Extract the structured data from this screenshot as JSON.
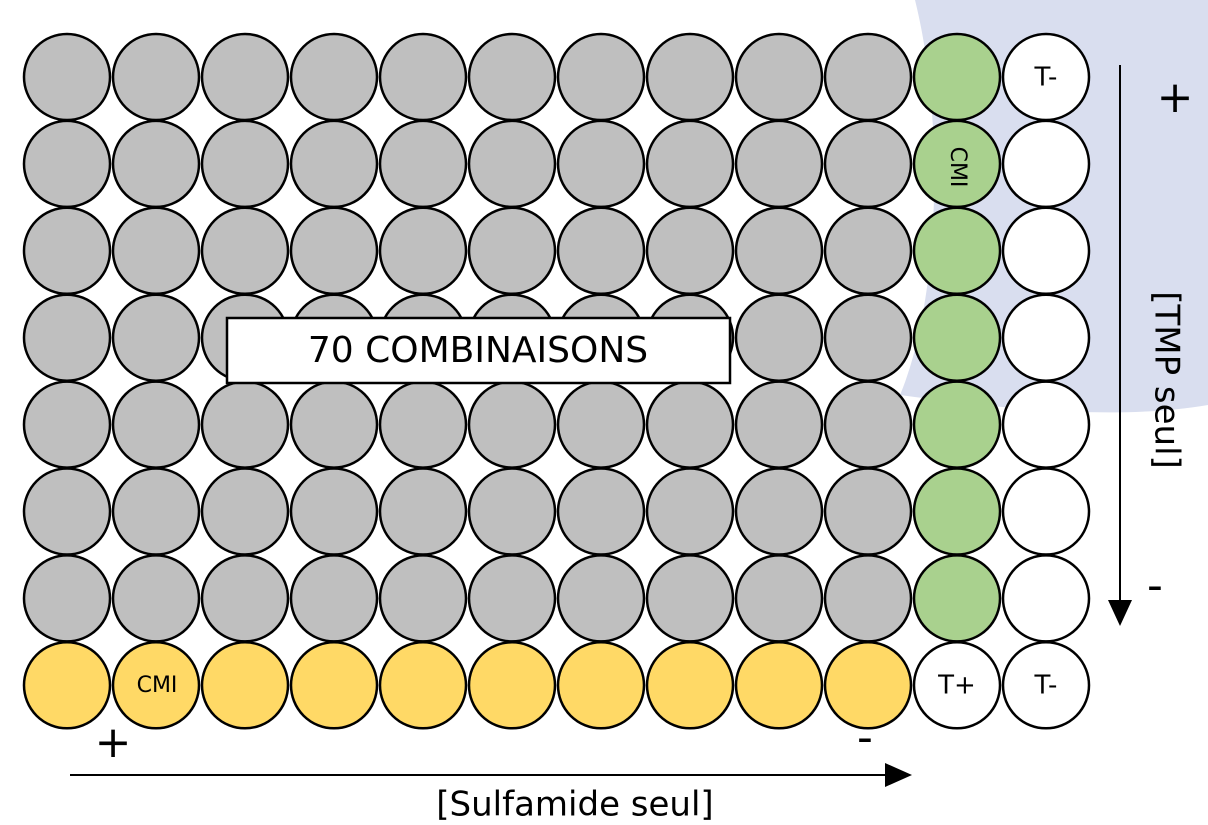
{
  "wells": {
    "top_right": "T-",
    "green_cmi": "CMI",
    "bottom_cmi": "CMI",
    "bottom_t_plus": "T+",
    "bottom_t_minus": "T-"
  },
  "box": "70 COMBINAISONS",
  "x_axis": {
    "label": "[Sulfamide seul]",
    "start": "+",
    "end": "-"
  },
  "y_axis": {
    "label": "[TMP seul]",
    "start": "+",
    "end": "-"
  }
}
